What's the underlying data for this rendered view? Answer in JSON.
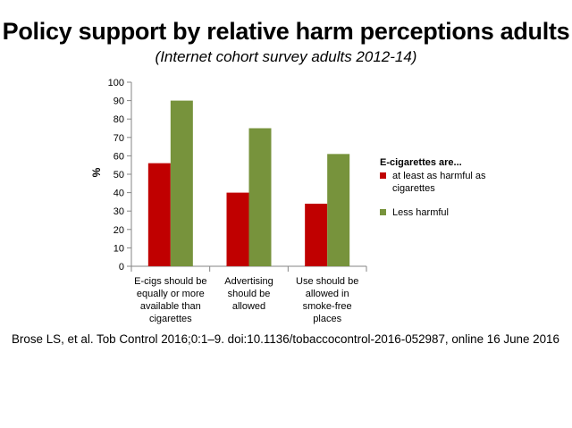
{
  "slide": {
    "title": "Policy support by relative harm perceptions adults",
    "subtitle": "(Internet cohort survey adults 2012-14)",
    "citation": "Brose LS, et al. Tob Control 2016;0:1–9. doi:10.1136/tobaccocontrol-2016-052987, online 16 June 2016"
  },
  "chart_data": {
    "type": "bar",
    "ylabel": "%",
    "ylim": [
      0,
      100
    ],
    "yticks": [
      0,
      10,
      20,
      30,
      40,
      50,
      60,
      70,
      80,
      90,
      100
    ],
    "grid": false,
    "legend_title": "E-cigarettes are...",
    "legend_position": "right",
    "categories": [
      [
        "E-cigs should be",
        "equally or more",
        "available than",
        "cigarettes"
      ],
      [
        "Advertising",
        "should be",
        "allowed"
      ],
      [
        "Use should be",
        "allowed in",
        "smoke-free",
        "places"
      ]
    ],
    "series": [
      {
        "name_lines": [
          "at least as harmful as",
          "cigarettes"
        ],
        "color": "#c00000",
        "values": [
          56,
          40,
          34
        ]
      },
      {
        "name_lines": [
          "Less harmful"
        ],
        "color": "#77933c",
        "values": [
          90,
          75,
          61
        ]
      }
    ]
  }
}
